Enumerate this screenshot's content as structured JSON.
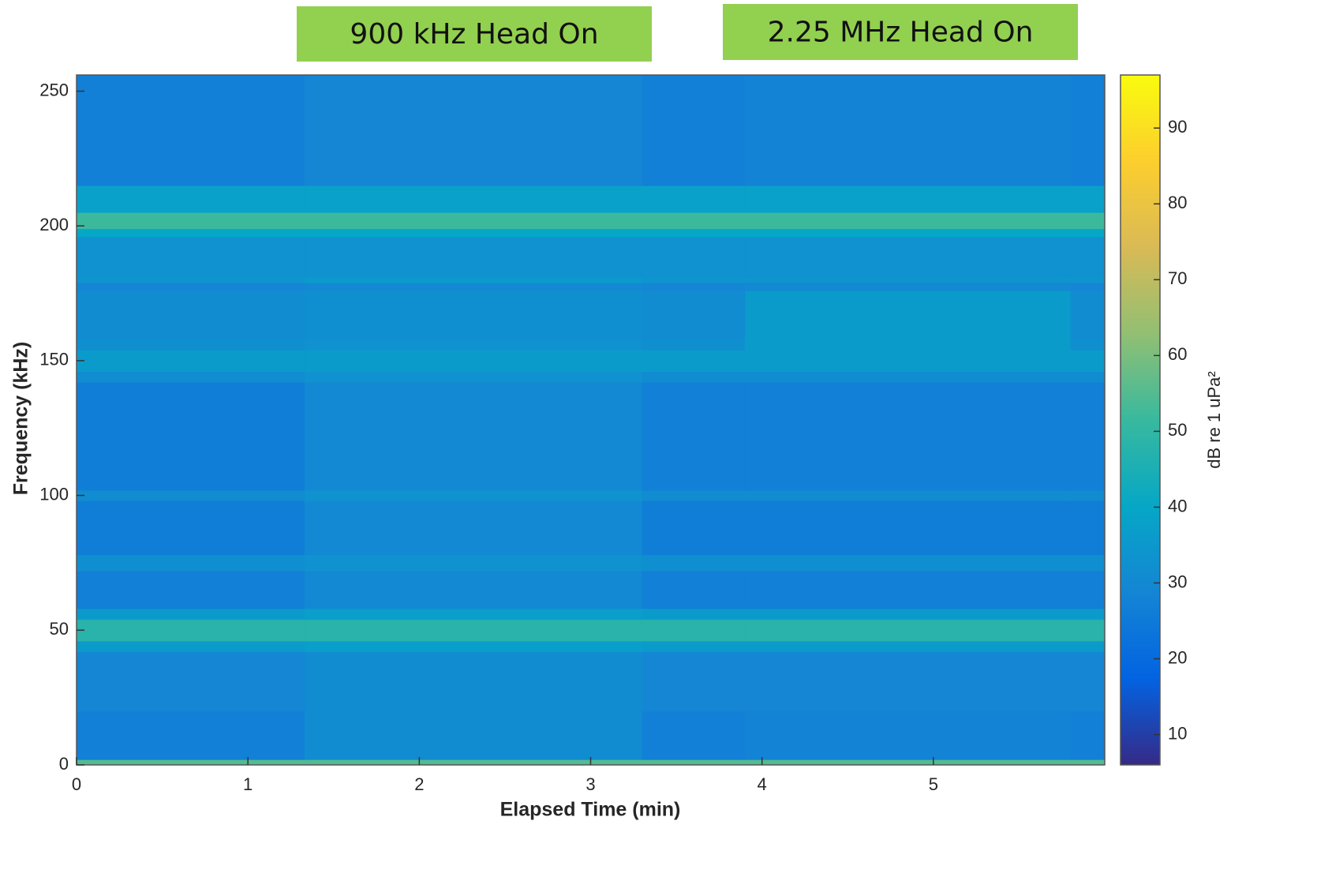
{
  "chart_data": {
    "type": "heatmap",
    "xlabel": "Elapsed Time (min)",
    "ylabel": "Frequency (kHz)",
    "colorbar_label": "dB re 1 uPa²",
    "annotations": [
      "900 kHz Head On",
      "2.25 MHz Head On"
    ],
    "annotation_color": "#92d050",
    "xlim": [
      0,
      6
    ],
    "xticks": [
      0,
      1,
      2,
      3,
      4,
      5
    ],
    "ylim": [
      0,
      256
    ],
    "yticks": [
      0,
      50,
      100,
      150,
      200,
      250
    ],
    "clim": [
      6,
      97
    ],
    "cticks": [
      10,
      20,
      30,
      40,
      50,
      60,
      70,
      80,
      90
    ],
    "colormap": [
      "#352a87",
      "#0363e1",
      "#1485d4",
      "#06a7c6",
      "#38b99e",
      "#92bf73",
      "#d9ba56",
      "#fcce2e",
      "#f9fb0e"
    ],
    "x_edges": [
      0,
      1.33,
      3.3,
      3.9,
      5.8,
      6
    ],
    "y_edges": [
      0,
      2,
      20,
      42,
      46,
      54,
      58,
      72,
      78,
      98,
      102,
      142,
      146,
      154,
      158,
      176,
      179,
      181,
      196,
      199,
      205,
      215,
      256
    ],
    "z": [
      [
        55,
        55,
        55,
        55,
        55
      ],
      [
        27,
        31,
        27,
        28,
        27
      ],
      [
        29,
        31,
        29,
        29,
        29
      ],
      [
        36,
        37,
        36,
        36,
        36
      ],
      [
        48,
        48,
        48,
        48,
        48
      ],
      [
        36,
        37,
        36,
        36,
        36
      ],
      [
        27,
        30,
        27,
        27,
        27
      ],
      [
        32,
        33,
        32,
        32,
        32
      ],
      [
        26,
        30,
        26,
        26,
        26
      ],
      [
        31,
        33,
        31,
        31,
        31
      ],
      [
        26,
        30,
        27,
        27,
        27
      ],
      [
        31,
        33,
        31,
        31,
        31
      ],
      [
        36,
        36,
        36,
        36,
        36
      ],
      [
        32,
        33,
        32,
        36,
        32
      ],
      [
        31,
        32,
        31,
        36,
        31
      ],
      [
        29,
        30,
        29,
        30,
        29
      ],
      [
        34,
        36,
        34,
        34,
        34
      ],
      [
        33,
        33,
        33,
        33,
        33
      ],
      [
        40,
        40,
        40,
        40,
        40
      ],
      [
        52,
        52,
        52,
        52,
        52
      ],
      [
        38,
        38,
        38,
        38,
        38
      ],
      [
        27,
        29,
        27,
        28,
        27
      ]
    ]
  }
}
